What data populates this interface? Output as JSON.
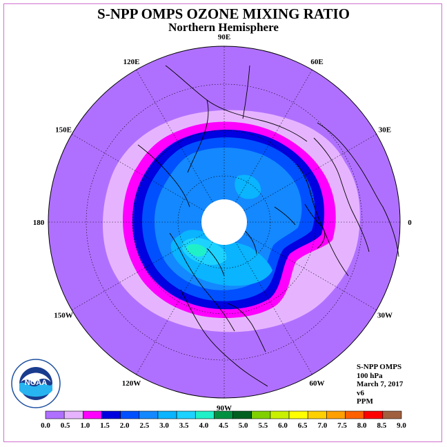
{
  "title": "S-NPP OMPS OZONE MIXING RATIO",
  "subtitle": "Northern Hemisphere",
  "longitude_labels": [
    "90E",
    "60E",
    "30E",
    "0",
    "30W",
    "60W",
    "90W",
    "120W",
    "150W",
    "180",
    "150E",
    "120E"
  ],
  "info": {
    "instrument": "S-NPP OMPS",
    "level": "100 hPa",
    "date": "March 7, 2017",
    "version": "v6",
    "units": "PPM"
  },
  "logo_text": "NOAA",
  "colorbar": {
    "ticks": [
      "0.0",
      "0.5",
      "1.0",
      "1.5",
      "2.0",
      "2.5",
      "3.0",
      "3.5",
      "4.0",
      "4.5",
      "5.0",
      "5.5",
      "6.0",
      "6.5",
      "7.0",
      "7.5",
      "8.0",
      "8.5",
      "9.0"
    ],
    "colors": [
      "#b070ff",
      "#e6b4ff",
      "#ff00ff",
      "#0000e0",
      "#0050ff",
      "#1488ff",
      "#0ab4ff",
      "#1ed2ff",
      "#20f0c8",
      "#009040",
      "#006020",
      "#80d000",
      "#c8f000",
      "#ffff00",
      "#ffd000",
      "#ffa000",
      "#ff6000",
      "#ff0000",
      "#a06040"
    ]
  },
  "colors": {
    "background_field": "#b070ff",
    "band_0_5": "#e6b4ff",
    "band_1_0": "#ff00ff",
    "band_1_5": "#0000e0",
    "band_2_0": "#0050ff",
    "band_2_5": "#1488ff",
    "band_3_0": "#0ab4ff",
    "band_3_5": "#1ed2ff",
    "band_4_0": "#20f0c8",
    "pole_gap": "#ffffff"
  }
}
